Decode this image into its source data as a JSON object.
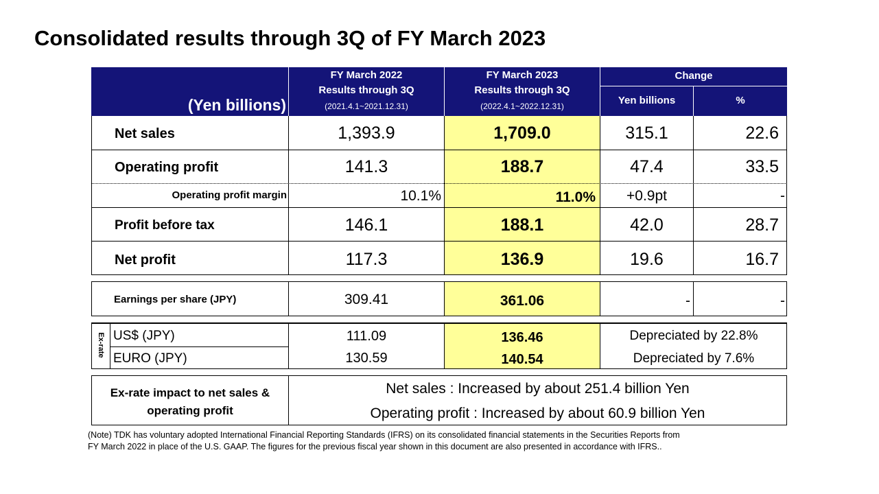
{
  "title": "Consolidated results through 3Q of FY March 2023",
  "header": {
    "unit": "(Yen billions)",
    "fy2022": {
      "line1": "FY March 2022",
      "line2": "Results through 3Q",
      "line3": "(2021.4.1~2021.12.31)"
    },
    "fy2023": {
      "line1": "FY March 2023",
      "line2": "Results through 3Q",
      "line3": "(2022.4.1~2022.12.31)"
    },
    "change": "Change",
    "change_yen": "Yen billions",
    "change_pct": "%"
  },
  "rows": [
    {
      "label": "Net sales",
      "fy2022": "1,393.9",
      "fy2023": "1,709.0",
      "change_yen": "315.1",
      "change_pct": "22.6"
    },
    {
      "label": "Operating profit",
      "fy2022": "141.3",
      "fy2023": "188.7",
      "change_yen": "47.4",
      "change_pct": "33.5"
    },
    {
      "label": "Operating profit margin",
      "fy2022": "10.1%",
      "fy2023": "11.0%",
      "change_yen": "+0.9pt",
      "change_pct": "-"
    },
    {
      "label": "Profit before tax",
      "fy2022": "146.1",
      "fy2023": "188.1",
      "change_yen": "42.0",
      "change_pct": "28.7"
    },
    {
      "label": "Net profit",
      "fy2022": "117.3",
      "fy2023": "136.9",
      "change_yen": "19.6",
      "change_pct": "16.7"
    }
  ],
  "eps": {
    "label": "Earnings per share (JPY)",
    "fy2022": "309.41",
    "fy2023": "361.06",
    "change_yen": "-",
    "change_pct": "-"
  },
  "exrate": {
    "side_label": "Ex-rate",
    "rows": [
      {
        "label": "US$ (JPY)",
        "fy2022": "111.09",
        "fy2023": "136.46",
        "change": "Depreciated by 22.8%"
      },
      {
        "label": "EURO (JPY)",
        "fy2022": "130.59",
        "fy2023": "140.54",
        "change": "Depreciated by 7.6%"
      }
    ]
  },
  "impact": {
    "label_line1": "Ex-rate impact to net sales &",
    "label_line2": "operating profit",
    "line1": "Net sales : Increased by about 251.4 billion Yen",
    "line2": "Operating profit : Increased by about 60.9 billion Yen"
  },
  "note": {
    "line1": "(Note) TDK has voluntary adopted International Financial Reporting Standards (IFRS) on its consolidated financial statements in the Securities Reports from",
    "line2": "FY March 2022 in place of the U.S. GAAP. The figures for the previous fiscal year shown in this document are also presented in accordance with IFRS.."
  },
  "colors": {
    "header_bg": "#141478",
    "highlight": "#ffff99",
    "border": "#000000"
  }
}
